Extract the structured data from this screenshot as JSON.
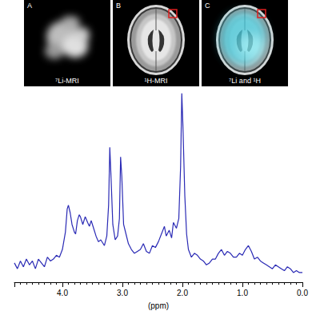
{
  "panels": [
    {
      "letter": "A",
      "caption": "⁷Li-MRI"
    },
    {
      "letter": "B",
      "caption": "¹H-MRI"
    },
    {
      "letter": "C",
      "caption": "⁷Li and ¹H"
    }
  ],
  "chart_data": {
    "type": "line",
    "xlabel": "(ppm)",
    "x": [
      4.8,
      4.75,
      4.7,
      4.65,
      4.6,
      4.55,
      4.5,
      4.45,
      4.4,
      4.35,
      4.3,
      4.25,
      4.2,
      4.15,
      4.1,
      4.05,
      4.0,
      3.95,
      3.92,
      3.9,
      3.87,
      3.84,
      3.8,
      3.78,
      3.75,
      3.72,
      3.7,
      3.66,
      3.62,
      3.58,
      3.55,
      3.52,
      3.48,
      3.44,
      3.4,
      3.36,
      3.3,
      3.26,
      3.23,
      3.21,
      3.19,
      3.16,
      3.12,
      3.08,
      3.05,
      3.03,
      3.01,
      2.98,
      2.94,
      2.9,
      2.85,
      2.8,
      2.75,
      2.7,
      2.65,
      2.6,
      2.55,
      2.5,
      2.45,
      2.4,
      2.35,
      2.3,
      2.27,
      2.22,
      2.18,
      2.15,
      2.1,
      2.06,
      2.03,
      2.01,
      1.99,
      1.96,
      1.93,
      1.9,
      1.85,
      1.8,
      1.75,
      1.7,
      1.65,
      1.6,
      1.55,
      1.5,
      1.45,
      1.4,
      1.35,
      1.3,
      1.25,
      1.2,
      1.15,
      1.1,
      1.05,
      1.0,
      0.95,
      0.9,
      0.85,
      0.8,
      0.75,
      0.7,
      0.65,
      0.6,
      0.55,
      0.5,
      0.45,
      0.4,
      0.35,
      0.3,
      0.25,
      0.2,
      0.15,
      0.1,
      0.05,
      0.0
    ],
    "values": [
      10,
      7,
      11,
      8,
      12,
      9,
      11,
      7,
      12,
      10,
      8,
      13,
      11,
      12,
      14,
      13,
      17,
      26,
      38,
      40,
      36,
      30,
      26,
      25,
      32,
      35,
      34,
      30,
      34,
      31,
      29,
      32,
      28,
      24,
      21,
      22,
      19,
      24,
      40,
      70,
      55,
      30,
      22,
      24,
      33,
      65,
      55,
      30,
      25,
      20,
      17,
      15,
      16,
      17,
      20,
      16,
      15,
      19,
      18,
      21,
      25,
      29,
      24,
      27,
      23,
      31,
      28,
      33,
      60,
      98,
      80,
      45,
      25,
      17,
      13,
      15,
      14,
      12,
      11,
      9,
      10,
      12,
      12,
      15,
      17,
      14,
      16,
      15,
      13,
      13,
      15,
      14,
      17,
      19,
      16,
      12,
      13,
      11,
      10,
      9,
      8,
      7,
      9,
      8,
      7,
      6,
      8,
      7,
      5,
      6,
      5,
      5
    ],
    "color": "#2a2ab5",
    "xlim": [
      4.8,
      0.0
    ],
    "xticks": [
      {
        "value": 4,
        "label": "4.0"
      },
      {
        "value": 3,
        "label": "3.0"
      },
      {
        "value": 2,
        "label": "2.0"
      },
      {
        "value": 1,
        "label": "1.0"
      },
      {
        "value": 0,
        "label": "0.0"
      }
    ],
    "ylim": [
      0,
      100
    ],
    "tick_labels": "x",
    "grid": false
  }
}
